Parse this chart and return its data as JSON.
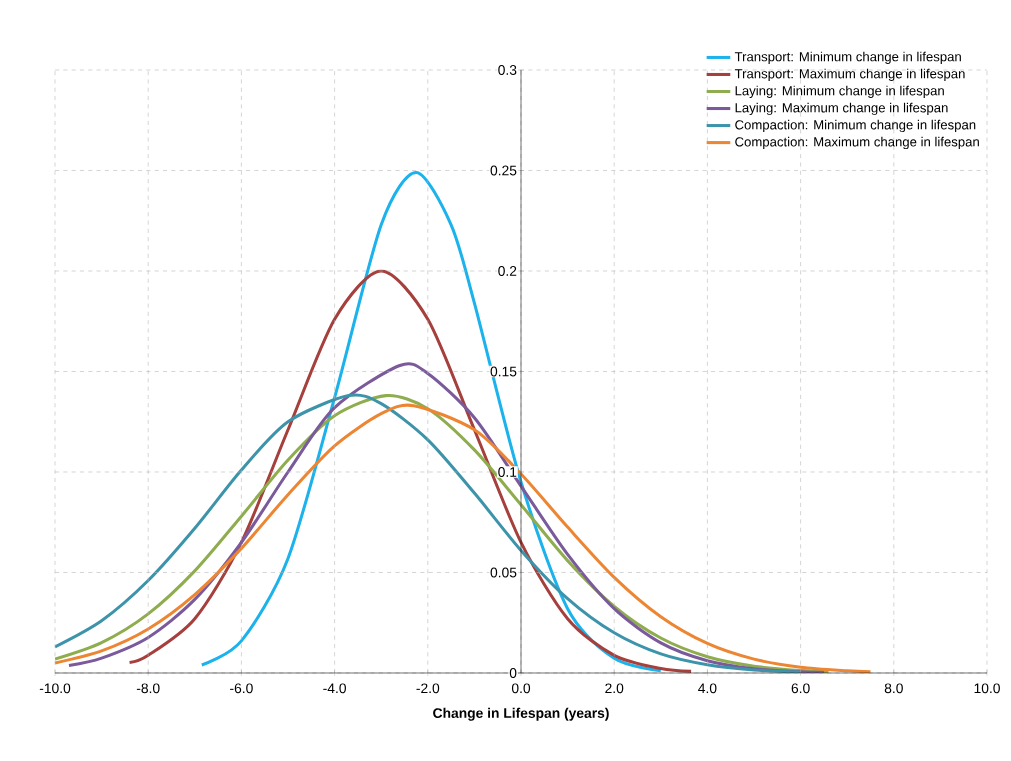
{
  "chart_data": {
    "type": "line",
    "xlabel": "Change in Lifespan (years)",
    "xlim": [
      -10,
      10
    ],
    "ylim": [
      0,
      0.3
    ],
    "xticks": [
      {
        "value": -10,
        "label": "-10.0"
      },
      {
        "value": -8,
        "label": "-8.0"
      },
      {
        "value": -6,
        "label": "-6.0"
      },
      {
        "value": -4,
        "label": "-4.0"
      },
      {
        "value": -2,
        "label": "-2.0"
      },
      {
        "value": 0,
        "label": "0.0"
      },
      {
        "value": 2,
        "label": "2.0"
      },
      {
        "value": 4,
        "label": "4.0"
      },
      {
        "value": 6,
        "label": "6.0"
      },
      {
        "value": 8,
        "label": "8.0"
      },
      {
        "value": 10,
        "label": "10.0"
      }
    ],
    "yticks": [
      0,
      0.05,
      0.1,
      0.15,
      0.2,
      0.25,
      0.3
    ],
    "grid": true,
    "legend": "top right",
    "marker": "none",
    "series": [
      {
        "name": "Transport: Minimum change in lifespan",
        "color": "#1cb2ec",
        "x": [
          -6.85,
          -6,
          -5,
          -4,
          -3,
          -2.25,
          -1.5,
          -1,
          0,
          1,
          2,
          3
        ],
        "values": [
          0.004,
          0.016,
          0.057,
          0.137,
          0.223,
          0.249,
          0.223,
          0.184,
          0.095,
          0.032,
          0.0073,
          0.0011
        ]
      },
      {
        "name": "Transport: Maximum change in lifespan",
        "color": "#a5403c",
        "x": [
          -8.4,
          -8,
          -7,
          -6,
          -5,
          -4,
          -3,
          -2,
          -1,
          0,
          1,
          2,
          3,
          3.65
        ],
        "values": [
          0.0052,
          0.0088,
          0.027,
          0.065,
          0.121,
          0.176,
          0.2,
          0.176,
          0.121,
          0.065,
          0.027,
          0.0088,
          0.0022,
          0.0008
        ]
      },
      {
        "name": "Laying: Minimum change in lifespan",
        "color": "#8fac4e",
        "x": [
          -10,
          -9,
          -8,
          -7,
          -6,
          -5,
          -4,
          -2.9,
          -2,
          -1,
          0,
          1,
          2,
          3,
          4,
          5,
          6,
          6.6
        ],
        "values": [
          0.0069,
          0.0151,
          0.0294,
          0.0508,
          0.078,
          0.106,
          0.128,
          0.138,
          0.1315,
          0.111,
          0.0837,
          0.0559,
          0.0331,
          0.0174,
          0.0081,
          0.0034,
          0.0012,
          0.0006
        ]
      },
      {
        "name": "Laying: Maximum change in lifespan",
        "color": "#7b5a9c",
        "x": [
          -9.7,
          -9,
          -8,
          -7,
          -6,
          -5,
          -4,
          -2.6,
          -2,
          -1,
          0,
          1,
          2,
          3,
          4,
          5,
          6,
          6.5
        ],
        "values": [
          0.0037,
          0.0074,
          0.0177,
          0.0366,
          0.065,
          0.1,
          0.132,
          0.153,
          0.149,
          0.127,
          0.093,
          0.059,
          0.032,
          0.015,
          0.0061,
          0.0021,
          0.0006,
          0.0003
        ]
      },
      {
        "name": "Compaction: Minimum change in lifespan",
        "color": "#3d94aa",
        "x": [
          -10,
          -9,
          -8,
          -7,
          -6,
          -5,
          -3.7,
          -3,
          -2,
          -1,
          0,
          1,
          2,
          3,
          4,
          5,
          6
        ],
        "values": [
          0.013,
          0.026,
          0.046,
          0.072,
          0.101,
          0.125,
          0.138,
          0.134,
          0.116,
          0.0895,
          0.061,
          0.037,
          0.02,
          0.0095,
          0.0041,
          0.0015,
          0.0005
        ]
      },
      {
        "name": "Compaction: Maximum change in lifespan",
        "color": "#ec8633",
        "x": [
          -10,
          -9,
          -8,
          -7,
          -6,
          -5,
          -4,
          -3,
          -2.3,
          -1,
          0,
          1,
          2,
          3,
          4,
          5,
          6,
          7,
          7.5
        ],
        "values": [
          0.005,
          0.011,
          0.0219,
          0.039,
          0.062,
          0.0887,
          0.113,
          0.129,
          0.133,
          0.121,
          0.099,
          0.0726,
          0.0476,
          0.028,
          0.0147,
          0.0069,
          0.0029,
          0.0011,
          0.0006
        ]
      }
    ]
  }
}
